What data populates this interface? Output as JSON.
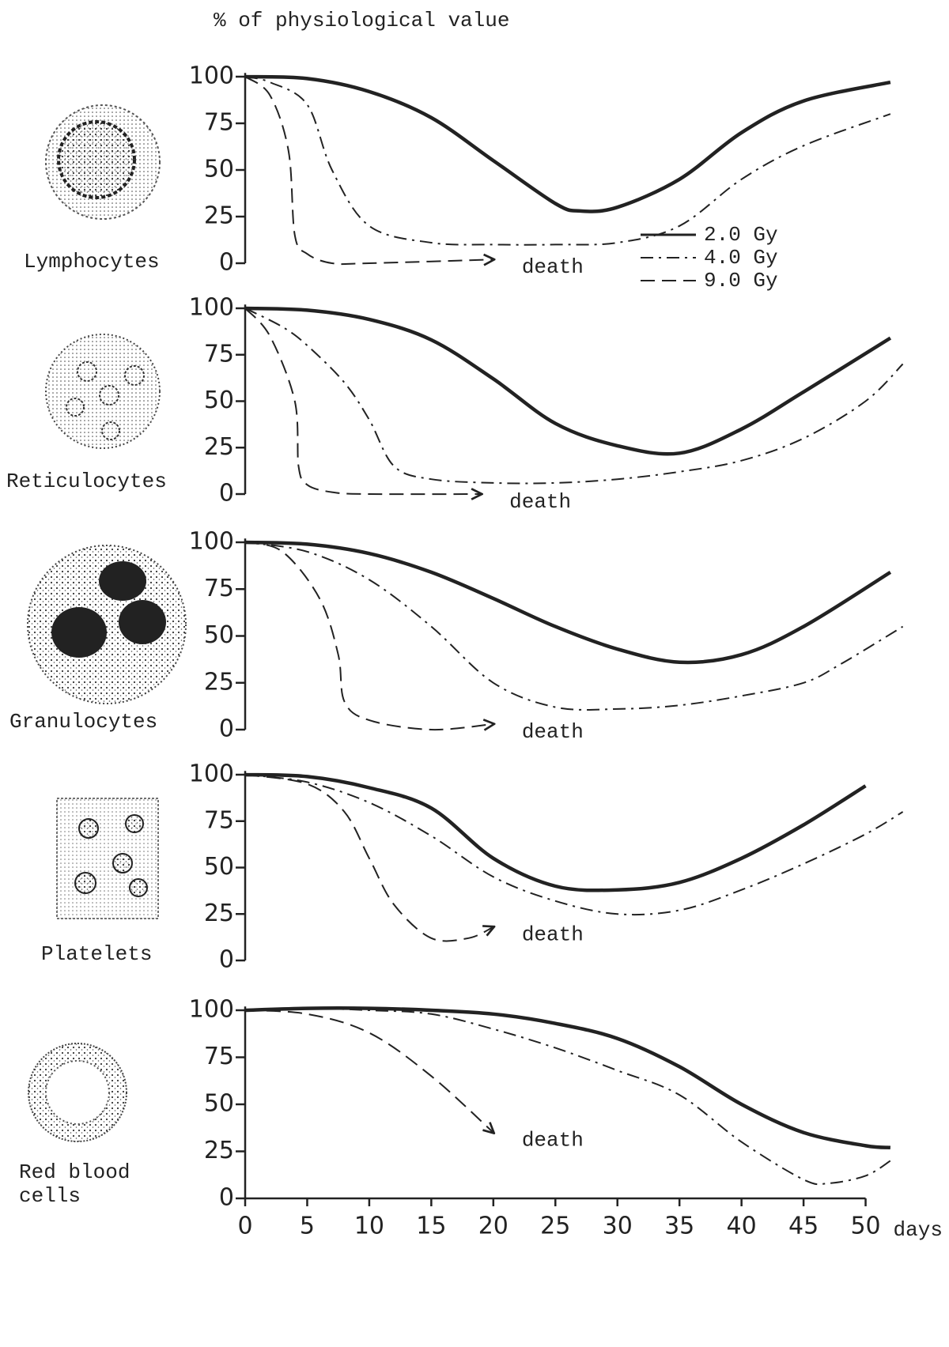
{
  "title": "% of physiological value",
  "chart_data": [
    {
      "type": "line",
      "title": "Lymphocytes",
      "xlim": [
        0,
        55
      ],
      "ylim": [
        0,
        102
      ],
      "yticks": [
        0,
        25,
        50,
        75,
        100
      ],
      "annotation": "death",
      "legend": "lower right",
      "series": [
        {
          "name": "2.0 Gy",
          "color": "#222222",
          "dash": "solid",
          "x": [
            0,
            5,
            10,
            15,
            20,
            25,
            27,
            30,
            35,
            40,
            45,
            52
          ],
          "values": [
            100,
            99,
            92,
            78,
            55,
            32,
            28,
            30,
            45,
            70,
            87,
            97
          ]
        },
        {
          "name": "4.0 Gy",
          "color": "#222222",
          "dash": "dashdot",
          "x": [
            0,
            2,
            5,
            7,
            10,
            15,
            20,
            25,
            30,
            35,
            40,
            45,
            52
          ],
          "values": [
            100,
            97,
            85,
            50,
            20,
            11,
            10,
            10,
            11,
            20,
            45,
            63,
            80
          ]
        },
        {
          "name": "9.0 Gy",
          "color": "#222222",
          "dash": "dashed",
          "x": [
            0,
            2,
            3.5,
            4,
            5,
            7,
            10,
            20
          ],
          "values": [
            100,
            90,
            60,
            15,
            5,
            0,
            0,
            2
          ]
        }
      ]
    },
    {
      "type": "line",
      "title": "Reticulocytes",
      "xlim": [
        0,
        55
      ],
      "ylim": [
        0,
        102
      ],
      "yticks": [
        0,
        25,
        50,
        75,
        100
      ],
      "annotation": "death",
      "series": [
        {
          "name": "2.0 Gy",
          "color": "#222222",
          "dash": "solid",
          "x": [
            0,
            5,
            10,
            15,
            20,
            25,
            30,
            35,
            40,
            45,
            52
          ],
          "values": [
            100,
            99,
            94,
            83,
            62,
            38,
            26,
            22,
            35,
            55,
            84
          ]
        },
        {
          "name": "4.0 Gy",
          "color": "#222222",
          "dash": "dashdot",
          "x": [
            0,
            3,
            5,
            8,
            10,
            12,
            15,
            20,
            25,
            30,
            35,
            40,
            45,
            50,
            53
          ],
          "values": [
            100,
            90,
            80,
            60,
            40,
            15,
            8,
            6,
            6,
            8,
            12,
            18,
            30,
            50,
            70
          ]
        },
        {
          "name": "9.0 Gy",
          "color": "#222222",
          "dash": "dashed",
          "x": [
            0,
            2,
            4,
            4.3,
            5,
            7,
            10,
            19
          ],
          "values": [
            100,
            85,
            50,
            15,
            5,
            1,
            0,
            0
          ]
        }
      ]
    },
    {
      "type": "line",
      "title": "Granulocytes",
      "xlim": [
        0,
        55
      ],
      "ylim": [
        0,
        102
      ],
      "yticks": [
        0,
        25,
        50,
        75,
        100
      ],
      "annotation": "death",
      "series": [
        {
          "name": "2.0 Gy",
          "color": "#222222",
          "dash": "solid",
          "x": [
            0,
            5,
            10,
            15,
            20,
            25,
            30,
            35,
            40,
            45,
            52
          ],
          "values": [
            100,
            99,
            94,
            84,
            70,
            55,
            43,
            36,
            40,
            55,
            84
          ]
        },
        {
          "name": "4.0 Gy",
          "color": "#222222",
          "dash": "dashdot",
          "x": [
            0,
            5,
            10,
            15,
            20,
            25,
            30,
            35,
            40,
            45,
            48,
            53
          ],
          "values": [
            100,
            95,
            80,
            55,
            25,
            12,
            11,
            13,
            18,
            25,
            35,
            55
          ]
        },
        {
          "name": "9.0 Gy",
          "color": "#222222",
          "dash": "dashed",
          "x": [
            0,
            3,
            6,
            7.5,
            8,
            10,
            15,
            20
          ],
          "values": [
            100,
            95,
            70,
            40,
            15,
            5,
            0,
            3
          ]
        }
      ]
    },
    {
      "type": "line",
      "title": "Platelets",
      "xlim": [
        0,
        55
      ],
      "ylim": [
        0,
        102
      ],
      "yticks": [
        0,
        25,
        50,
        75,
        100
      ],
      "annotation": "death",
      "series": [
        {
          "name": "2.0 Gy",
          "color": "#222222",
          "dash": "solid",
          "x": [
            0,
            5,
            10,
            15,
            20,
            25,
            30,
            35,
            40,
            45,
            50
          ],
          "values": [
            100,
            99,
            93,
            82,
            55,
            40,
            38,
            42,
            55,
            73,
            94
          ]
        },
        {
          "name": "4.0 Gy",
          "color": "#222222",
          "dash": "dashdot",
          "x": [
            0,
            5,
            10,
            15,
            20,
            25,
            30,
            35,
            40,
            45,
            50,
            53
          ],
          "values": [
            100,
            96,
            85,
            67,
            45,
            32,
            25,
            27,
            38,
            52,
            68,
            80
          ]
        },
        {
          "name": "9.0 Gy",
          "color": "#222222",
          "dash": "dashed",
          "x": [
            0,
            5,
            8,
            10,
            12,
            15,
            18,
            20
          ],
          "values": [
            100,
            95,
            80,
            55,
            30,
            12,
            12,
            18
          ]
        }
      ]
    },
    {
      "type": "line",
      "title": "Red blood cells",
      "xlim": [
        0,
        55
      ],
      "ylim": [
        0,
        102
      ],
      "yticks": [
        0,
        25,
        50,
        75,
        100
      ],
      "annotation": "death",
      "xticks": [
        0,
        5,
        10,
        15,
        20,
        25,
        30,
        35,
        40,
        45,
        50
      ],
      "x_label": "days",
      "series": [
        {
          "name": "2.0 Gy",
          "color": "#222222",
          "dash": "solid",
          "x": [
            0,
            5,
            10,
            15,
            20,
            25,
            30,
            35,
            40,
            45,
            50,
            52
          ],
          "values": [
            100,
            101,
            101,
            100,
            98,
            93,
            85,
            70,
            50,
            35,
            28,
            27
          ]
        },
        {
          "name": "4.0 Gy",
          "color": "#222222",
          "dash": "dashdot",
          "x": [
            0,
            5,
            10,
            15,
            20,
            25,
            30,
            35,
            40,
            45,
            47,
            50,
            52
          ],
          "values": [
            100,
            101,
            100,
            98,
            90,
            80,
            68,
            55,
            30,
            10,
            8,
            12,
            20
          ]
        },
        {
          "name": "9.0 Gy",
          "color": "#222222",
          "dash": "dashed",
          "x": [
            0,
            5,
            10,
            15,
            20
          ],
          "values": [
            100,
            98,
            88,
            65,
            35
          ]
        }
      ]
    }
  ]
}
